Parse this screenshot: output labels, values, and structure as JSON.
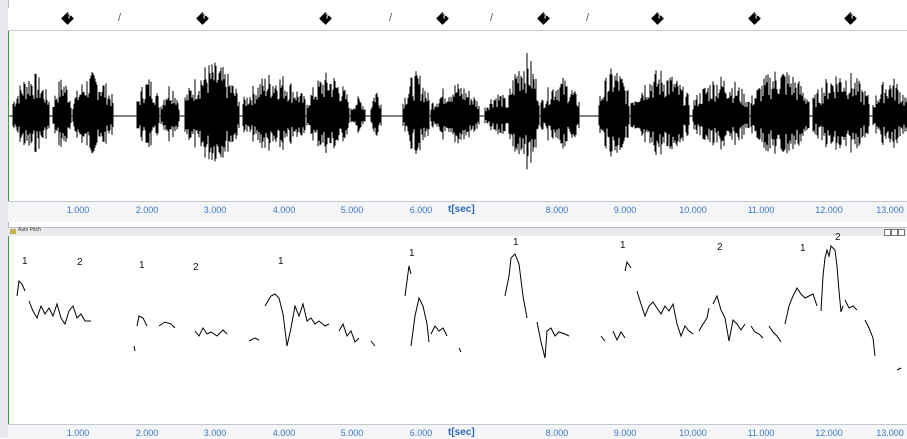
{
  "annotation_bar": {
    "markers": [
      {
        "type": "diamond",
        "label": "?"
      },
      {
        "type": "slash",
        "label": "/"
      },
      {
        "type": "diamond",
        "label": "?"
      },
      {
        "type": "diamond",
        "label": "?"
      },
      {
        "type": "slash",
        "label": "/"
      },
      {
        "type": "diamond",
        "label": "?"
      },
      {
        "type": "slash",
        "label": "/"
      },
      {
        "type": "diamond",
        "label": "?"
      },
      {
        "type": "slash",
        "label": "/"
      },
      {
        "type": "diamond",
        "label": "?"
      },
      {
        "type": "diamond",
        "label": "?"
      },
      {
        "type": "diamond",
        "label": "?"
      }
    ]
  },
  "time_axis": {
    "label": "t[sec]",
    "ticks": [
      "1.000",
      "2.000",
      "3.000",
      "4.000",
      "5.000",
      "6.000",
      "8.000",
      "9.000",
      "10.000",
      "11.000",
      "12.000",
      "13.000"
    ]
  },
  "pitch_panel": {
    "title": "Auto Pitch",
    "window_buttons": [
      "_",
      "□",
      "×"
    ],
    "labels": [
      "1",
      "2",
      "1",
      "2",
      "1",
      "1",
      "1",
      "1",
      "2",
      "1",
      "2"
    ]
  },
  "colors": {
    "waveform": "#000000",
    "axis_text": "#3b77c4",
    "cursor_line": "#3a9a3a"
  }
}
